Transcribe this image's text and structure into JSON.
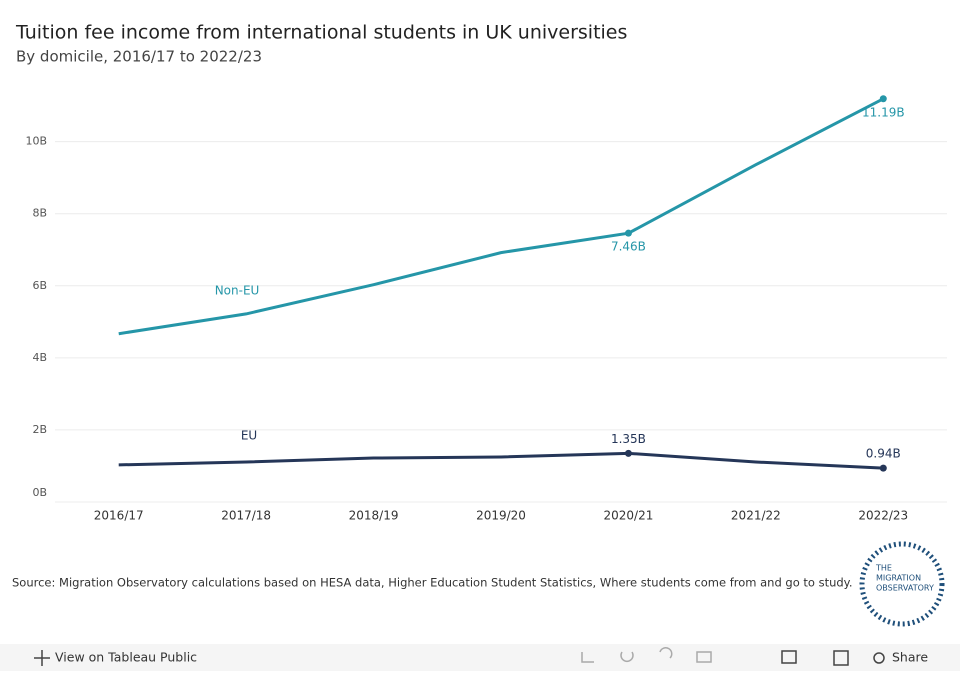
{
  "chart_data": {
    "type": "line",
    "title": "Tuition fee income from international students in UK universities",
    "subtitle": "By domicile, 2016/17 to 2022/23",
    "categories": [
      "2016/17",
      "2017/18",
      "2018/19",
      "2019/20",
      "2020/21",
      "2021/22",
      "2022/23"
    ],
    "series": [
      {
        "name": "Non-EU",
        "color": "#2596a8",
        "values": [
          4.67,
          5.22,
          6.03,
          6.92,
          7.46,
          9.36,
          11.19
        ],
        "value_labels": [
          null,
          null,
          null,
          null,
          "7.46B",
          null,
          "11.19B"
        ]
      },
      {
        "name": "EU",
        "color": "#253658",
        "values": [
          1.03,
          1.11,
          1.22,
          1.25,
          1.35,
          1.11,
          0.94
        ],
        "value_labels": [
          null,
          null,
          null,
          null,
          "1.35B",
          null,
          "0.94B"
        ]
      }
    ],
    "ylim": [
      0,
      11.6
    ],
    "yticks": [
      {
        "value": 0,
        "label": "0B"
      },
      {
        "value": 2,
        "label": "2B"
      },
      {
        "value": 4,
        "label": "4B"
      },
      {
        "value": 6,
        "label": "6B"
      },
      {
        "value": 8,
        "label": "8B"
      },
      {
        "value": 10,
        "label": "10B"
      }
    ],
    "grid": true,
    "source": "Source: Migration Observatory calculations based on HESA data, Higher Education Student Statistics, Where students come from and go to study."
  },
  "logo": {
    "line1": "THE",
    "line2": "MIGRATION",
    "line3": "OBSERVATORY"
  },
  "toolbar": {
    "view": "View on Tableau Public",
    "share": "Share"
  }
}
